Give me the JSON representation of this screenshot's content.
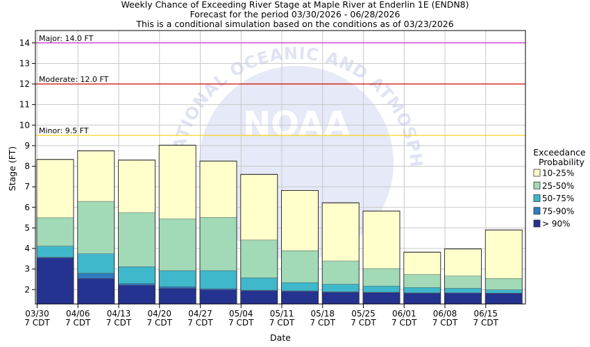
{
  "chart_data": {
    "type": "bar",
    "title": "Weekly Chance of Exceeding River Stage at Maple River at Enderlin 1E (ENDN8)",
    "subtitle": "Forecast for the period 03/30/2026 - 06/28/2026",
    "subtitle2": "This is a conditional simulation based on the conditions as of 03/23/2026",
    "xlabel": "Date",
    "ylabel": "Stage (FT)",
    "ylim": [
      1.3,
      14.6
    ],
    "yticks": [
      2,
      3,
      4,
      5,
      6,
      7,
      8,
      9,
      10,
      11,
      12,
      13,
      14
    ],
    "grid": true,
    "categories": [
      "03/30",
      "04/06",
      "04/13",
      "04/20",
      "04/27",
      "05/04",
      "05/11",
      "05/18",
      "05/25",
      "06/01",
      "06/08",
      "06/15"
    ],
    "category_sublabels": [
      "7 CDT",
      "7 CDT",
      "7 CDT",
      "7 CDT",
      "7 CDT",
      "7 CDT",
      "7 CDT",
      "7 CDT",
      "7 CDT",
      "7 CDT",
      "7 CDT",
      "7 CDT"
    ],
    "series": [
      {
        "name": "> 90%",
        "color": "#24338f",
        "values": [
          3.55,
          2.55,
          2.22,
          2.07,
          2.0,
          1.95,
          1.92,
          1.88,
          1.86,
          1.83,
          1.83,
          1.82
        ]
      },
      {
        "name": "75-90%",
        "color": "#2f7cc0",
        "values": [
          3.58,
          2.8,
          2.3,
          2.15,
          2.05,
          1.98,
          1.95,
          1.9,
          1.88,
          1.85,
          1.85,
          1.84
        ]
      },
      {
        "name": "50-75%",
        "color": "#3fb8cc",
        "values": [
          4.12,
          3.75,
          3.12,
          2.93,
          2.93,
          2.58,
          2.35,
          2.27,
          2.18,
          2.11,
          2.07,
          2.0
        ]
      },
      {
        "name": "25-50%",
        "color": "#a2dab7",
        "values": [
          5.5,
          6.3,
          5.75,
          5.45,
          5.52,
          4.42,
          3.9,
          3.4,
          3.03,
          2.74,
          2.67,
          2.55
        ]
      },
      {
        "name": "10-25%",
        "color": "#ffffcc",
        "values": [
          8.33,
          8.75,
          8.3,
          9.02,
          8.25,
          7.6,
          6.82,
          6.22,
          5.82,
          3.82,
          3.98,
          4.9
        ]
      }
    ],
    "thresholds": [
      {
        "label": "Major: 14.0 FT",
        "value": 14.0,
        "color": "#cc33cc"
      },
      {
        "label": "Moderate: 12.0 FT",
        "value": 12.0,
        "color": "#cc0000"
      },
      {
        "label": "Minor: 9.5 FT",
        "value": 9.5,
        "color": "#ffcc00"
      }
    ],
    "legend": {
      "title_line1": "Exceedance",
      "title_line2": "Probability",
      "placement": "right"
    }
  },
  "watermark": {
    "arc_text": "NATIONAL OCEANIC AND ATMOSPHERIC ADMINISTRATION",
    "logo_text": "NOAA"
  }
}
